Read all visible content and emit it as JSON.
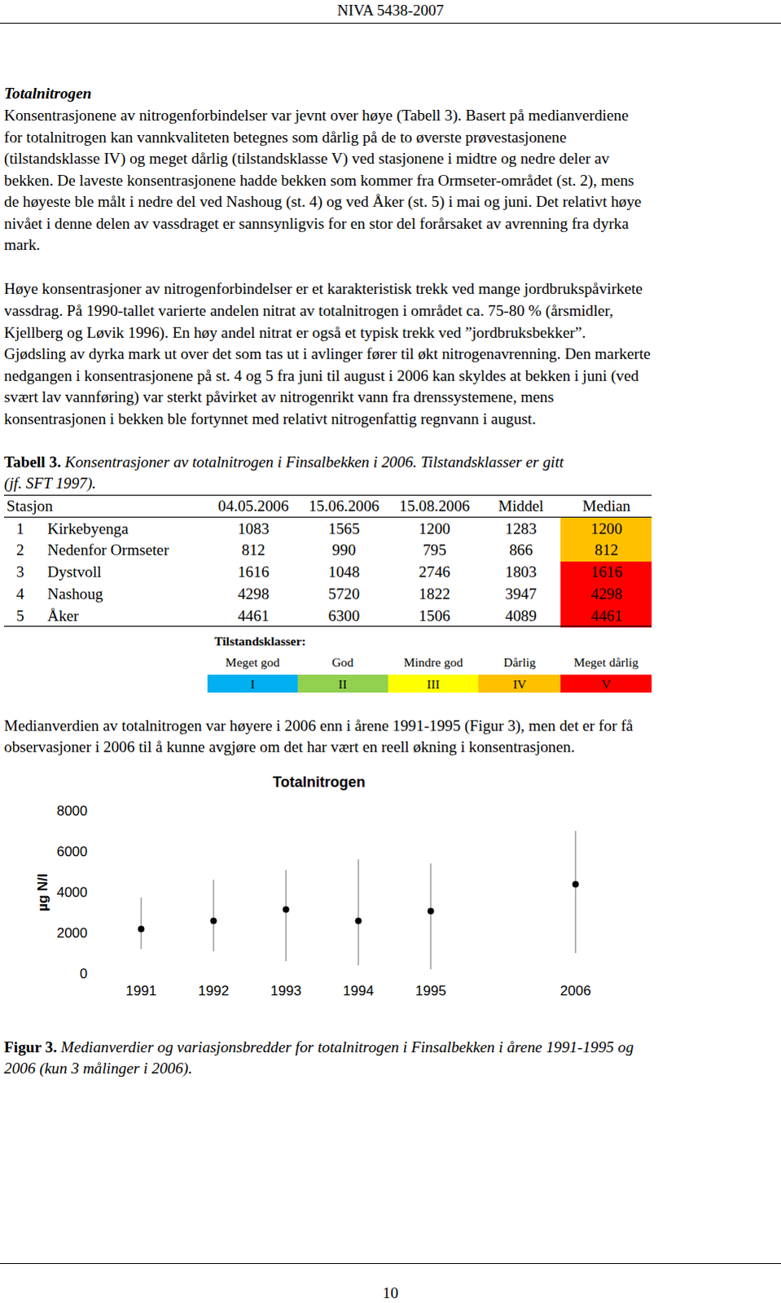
{
  "header": "NIVA 5438-2007",
  "section_title": "Totalnitrogen",
  "paragraphs_top": [
    [
      "Konsentrasjonene av nitrogenforbindelser var jevnt over høye (Tabell 3). Basert på medianverdiene",
      "for totalnitrogen kan vannkvaliteten betegnes som dårlig på de to øverste prøvestasjonene",
      "(tilstandsklasse IV) og meget dårlig (tilstandsklasse V) ved stasjonene i midtre og nedre deler av",
      "bekken. De laveste konsentrasjonene hadde bekken som kommer fra Ormseter-området (st. 2), mens",
      "de høyeste ble målt i nedre del ved Nashoug (st. 4) og ved Åker (st. 5) i mai og juni. Det relativt høye",
      "nivået i denne delen av vassdraget er sannsynligvis for en stor del forårsaket av avrenning fra dyrka",
      "mark."
    ],
    [
      "Høye konsentrasjoner av nitrogenforbindelser er et karakteristisk trekk ved mange jordbrukspåvirkete",
      "vassdrag. På 1990-tallet varierte andelen nitrat av totalnitrogen i området ca. 75-80 % (årsmidler,",
      "Kjellberg og Løvik 1996). En høy andel nitrat er også et typisk trekk ved ”jordbruksbekker”.",
      "Gjødsling av dyrka mark ut over det som tas ut i avlinger fører til økt nitrogenavrenning. Den markerte",
      "nedgangen i konsentrasjonene på st. 4 og 5 fra juni til august i 2006 kan skyldes at bekken i juni (ved",
      "svært lav vannføring) var sterkt påvirket av nitrogenrikt vann fra drenssystemene, mens",
      "konsentrasjonen i bekken ble fortynnet med relativt nitrogenfattig regnvann i august."
    ]
  ],
  "table_caption": {
    "label": "Tabell 3.",
    "lines": [
      "Konsentrasjoner av totalnitrogen i Finsalbekken i 2006. Tilstandsklasser er gitt",
      "(jf. SFT 1997)."
    ]
  },
  "table": {
    "columns": [
      "Stasjon",
      "04.05.2006",
      "15.06.2006",
      "15.08.2006",
      "Middel",
      "Median"
    ],
    "rows": [
      {
        "number": 1,
        "name": "Kirkebyenga",
        "values": [
          1083,
          1565,
          1200,
          1283,
          1200
        ],
        "color": "#ffc000"
      },
      {
        "number": 2,
        "name": "Nedenfor Ormseter",
        "values": [
          812,
          990,
          795,
          866,
          812
        ],
        "color": "#ffc000"
      },
      {
        "number": 3,
        "name": "Dystvoll",
        "values": [
          1616,
          1048,
          2746,
          1803,
          1616
        ],
        "color": "#ff0000"
      },
      {
        "number": 4,
        "name": "Nashoug",
        "values": [
          4298,
          5720,
          1822,
          3947,
          4298
        ],
        "color": "#ff0000"
      },
      {
        "number": 5,
        "name": "Åker",
        "values": [
          4461,
          6300,
          1506,
          4089,
          4461
        ],
        "color": "#ff0000"
      }
    ]
  },
  "classes": {
    "title": "Tilstandsklasser:",
    "items": [
      {
        "name": "Meget god",
        "label": "I",
        "color": "#00b0f0"
      },
      {
        "name": "God",
        "label": "II",
        "color": "#92d050"
      },
      {
        "name": "Mindre god",
        "label": "III",
        "color": "#ffff00"
      },
      {
        "name": "Dårlig",
        "label": "IV",
        "color": "#ffc000"
      },
      {
        "name": "Meget dårlig",
        "label": "V",
        "color": "#ff0000"
      }
    ]
  },
  "paragraph_after_table": [
    "Medianverdien av totalnitrogen var høyere i 2006 enn i årene 1991-1995 (Figur 3), men det er for få",
    "observasjoner i 2006 til å kunne avgjøre om det har vært en reell økning i konsentrasjonen."
  ],
  "chart_data": {
    "type": "scatter",
    "title": "Totalnitrogen",
    "y_label": "µg N/l",
    "categories": [
      "1991",
      "1992",
      "1993",
      "1994",
      "1995",
      null,
      "2006"
    ],
    "values": [
      2200,
      2600,
      3160,
      2600,
      3080,
      null,
      4400
    ],
    "min": [
      1200,
      1080,
      600,
      400,
      200,
      null,
      1000
    ],
    "max": [
      3720,
      4600,
      5080,
      5600,
      5400,
      null,
      7000
    ],
    "color": "#000000",
    "ylim": [
      0,
      8000
    ],
    "yticks": [
      0,
      2000,
      4000,
      6000,
      8000
    ],
    "grid": false
  },
  "figure_caption": {
    "label": "Figur 3.",
    "lines": [
      "Medianverdier og variasjonsbredder for totalnitrogen i Finsalbekken i årene 1991-1995 og",
      "2006 (kun 3 målinger i 2006)."
    ]
  },
  "page_number": 10
}
